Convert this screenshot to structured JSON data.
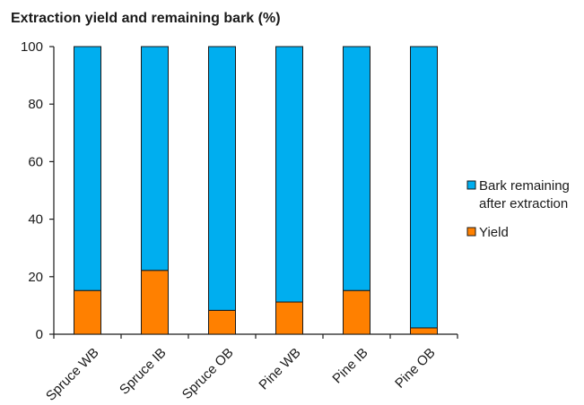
{
  "chart_data": {
    "type": "bar",
    "stacked": true,
    "title": "Extraction yield and remaining bark (%)",
    "categories": [
      "Spruce WB",
      "Spruce IB",
      "Spruce OB",
      "Pine WB",
      "Pine IB",
      "Pine OB"
    ],
    "series": [
      {
        "name": "Yield",
        "color": "#ff8000",
        "values": [
          15.2,
          22.2,
          8.3,
          11.2,
          15.2,
          2.2
        ]
      },
      {
        "name": "Bark remaining after extraction",
        "color": "#00aeef",
        "values": [
          84.8,
          77.8,
          91.7,
          88.8,
          84.8,
          97.8
        ]
      }
    ],
    "legend": {
      "position": "right",
      "entries": [
        {
          "lines": [
            "Bark remaining",
            "after extraction"
          ],
          "color": "#00aeef"
        },
        {
          "lines": [
            "Yield"
          ],
          "color": "#ff8000"
        }
      ]
    },
    "xlabel": "",
    "ylabel": "",
    "ylim": [
      0,
      100
    ],
    "yticks": [
      0,
      20,
      40,
      60,
      80,
      100
    ],
    "grid": false
  }
}
